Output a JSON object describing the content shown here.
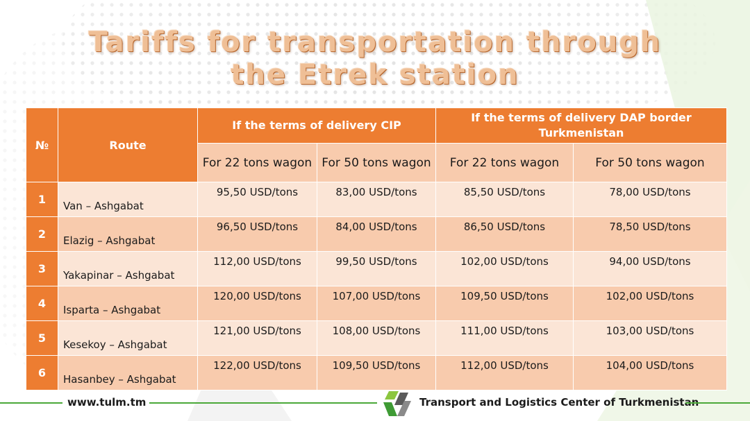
{
  "title": {
    "line1": "Tariffs for transportation through",
    "line2": "the Etrek station"
  },
  "table": {
    "headers": {
      "number": "№",
      "route": "Route",
      "cip": "If the terms of delivery CIP",
      "dap": "If the terms of delivery DAP border Turkmenistan",
      "cip_22": "For 22 tons wagon",
      "cip_50": "For 50 tons wagon",
      "dap_22": "For 22 tons wagon",
      "dap_50": "For 50 tons wagon"
    },
    "rows": [
      {
        "num": "1",
        "route": "Van – Ashgabat",
        "cip_22": "95,50 USD/tons",
        "cip_50": "83,00 USD/tons",
        "dap_22": "85,50 USD/tons",
        "dap_50": "78,00 USD/tons"
      },
      {
        "num": "2",
        "route": "Elazig – Ashgabat",
        "cip_22": "96,50 USD/tons",
        "cip_50": "84,00 USD/tons",
        "dap_22": "86,50 USD/tons",
        "dap_50": "78,50 USD/tons"
      },
      {
        "num": "3",
        "route": "Yakapinar – Ashgabat",
        "cip_22": "112,00 USD/tons",
        "cip_50": "99,50 USD/tons",
        "dap_22": "102,00 USD/tons",
        "dap_50": "94,00 USD/tons"
      },
      {
        "num": "4",
        "route": "Isparta – Ashgabat",
        "cip_22": "120,00 USD/tons",
        "cip_50": "107,00 USD/tons",
        "dap_22": "109,50 USD/tons",
        "dap_50": "102,00 USD/tons"
      },
      {
        "num": "5",
        "route": "Kesekoy – Ashgabat",
        "cip_22": "121,00 USD/tons",
        "cip_50": "108,00 USD/tons",
        "dap_22": "111,00 USD/tons",
        "dap_50": "103,00 USD/tons"
      },
      {
        "num": "6",
        "route": "Hasanbey – Ashgabat",
        "cip_22": "122,00 USD/tons",
        "cip_50": "109,50 USD/tons",
        "dap_22": "112,00 USD/tons",
        "dap_50": "104,00 USD/tons"
      }
    ]
  },
  "footer": {
    "url": "www.tulm.tm",
    "organization": "Transport and Logistics Center of Turkmenistan"
  },
  "colors": {
    "accent": "#ed7d31",
    "row_dark": "#f8cbad",
    "row_light": "#fbe5d6",
    "footer_line": "#4aa838",
    "title": "#efbf96"
  },
  "icons": {
    "logo": "tulm-logo-icon"
  }
}
